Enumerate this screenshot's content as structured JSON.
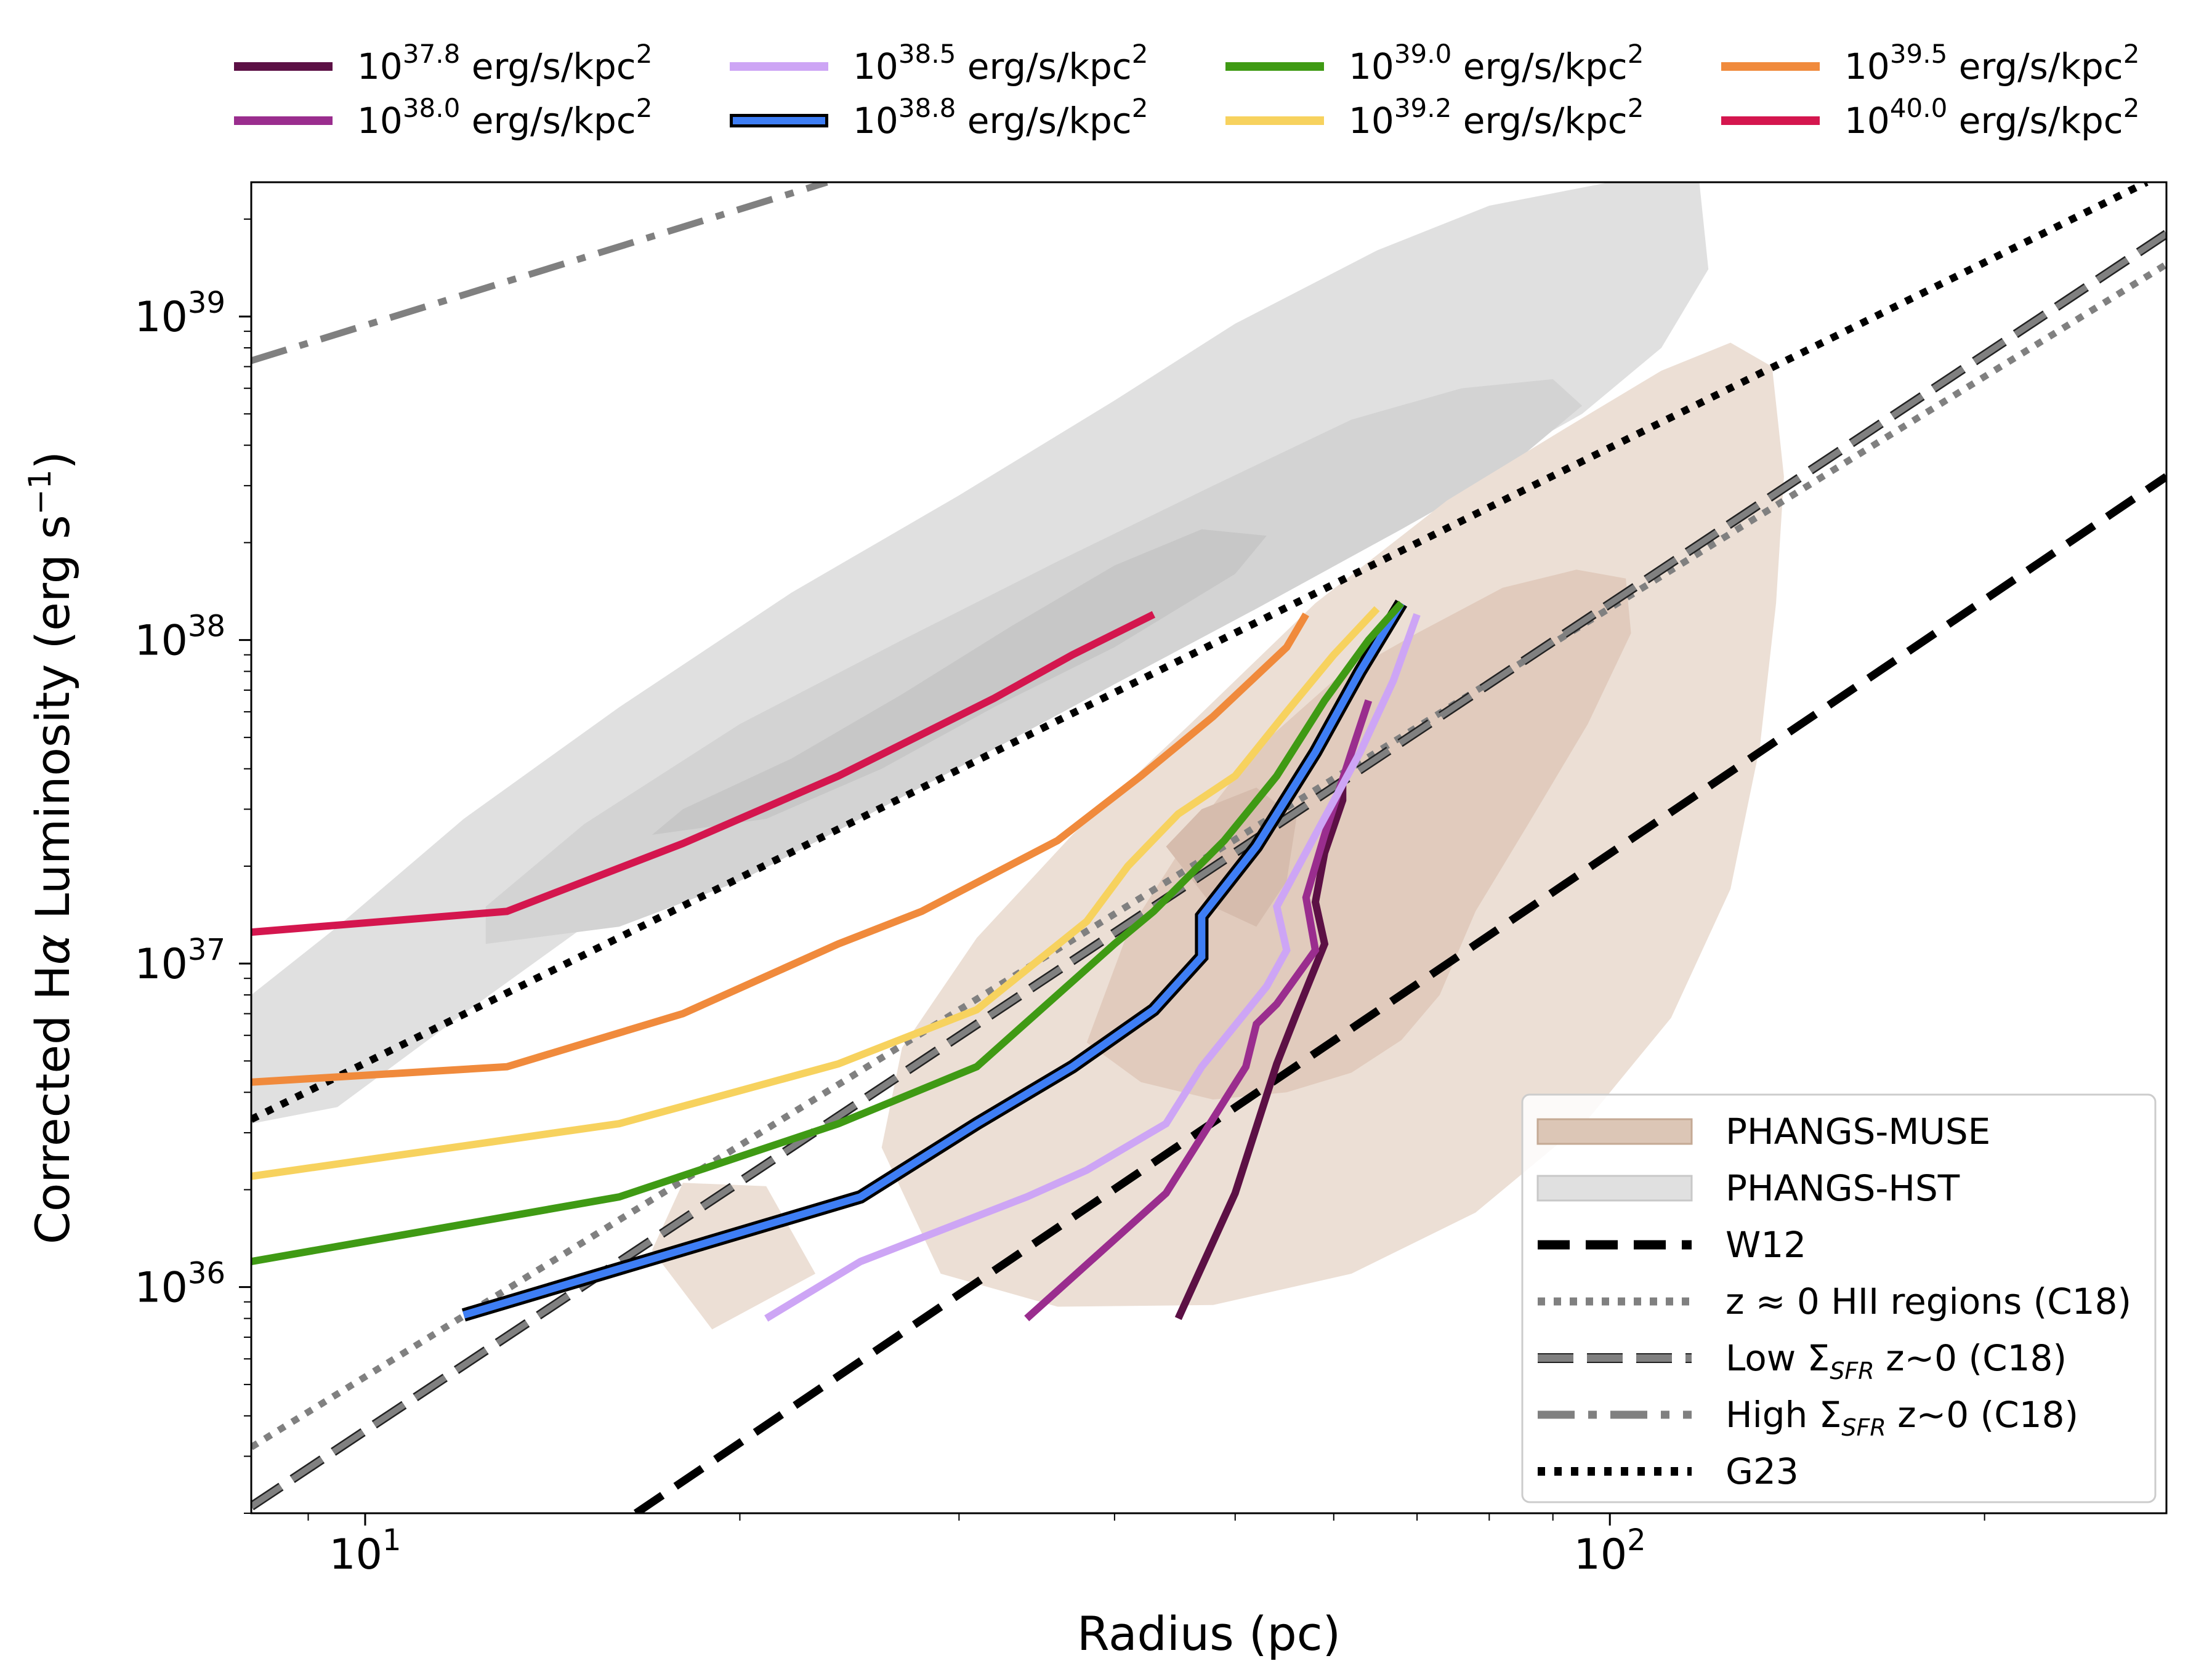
{
  "chart_data": {
    "type": "line",
    "xscale": "log",
    "yscale": "log",
    "xlim": [
      8.1,
      280
    ],
    "ylim": [
      2e+35,
      2.6e+39
    ],
    "xlabel": "Radius (pc)",
    "ylabel_prefix": "Corrected H",
    "ylabel_alpha": "α",
    "ylabel_mid": " Luminosity (erg s",
    "ylabel_exp": "−1",
    "ylabel_suffix": ")",
    "xticks": [
      {
        "base": "10",
        "exp": "1",
        "value": 10
      },
      {
        "base": "10",
        "exp": "2",
        "value": 100
      }
    ],
    "yticks": [
      {
        "base": "10",
        "exp": "36",
        "value": 1e+36
      },
      {
        "base": "10",
        "exp": "37",
        "value": 1e+37
      },
      {
        "base": "10",
        "exp": "38",
        "value": 1e+38
      },
      {
        "base": "10",
        "exp": "39",
        "value": 1e+39
      }
    ],
    "top_legend": [
      {
        "base": "10",
        "exp": "37.8",
        "unit": " erg/s/kpc",
        "unit_exp": "2",
        "color": "#5c1045"
      },
      {
        "base": "10",
        "exp": "38.0",
        "unit": " erg/s/kpc",
        "unit_exp": "2",
        "color": "#9a2d8e"
      },
      {
        "base": "10",
        "exp": "38.5",
        "unit": " erg/s/kpc",
        "unit_exp": "2",
        "color": "#cda5f5"
      },
      {
        "base": "10",
        "exp": "38.8",
        "unit": " erg/s/kpc",
        "unit_exp": "2",
        "color": "#3e7ef5",
        "outlined": true
      },
      {
        "base": "10",
        "exp": "39.0",
        "unit": " erg/s/kpc",
        "unit_exp": "2",
        "color": "#3f9a14"
      },
      {
        "base": "10",
        "exp": "39.2",
        "unit": " erg/s/kpc",
        "unit_exp": "2",
        "color": "#f7d25e"
      },
      {
        "base": "10",
        "exp": "39.5",
        "unit": " erg/s/kpc",
        "unit_exp": "2",
        "color": "#f08a3c"
      },
      {
        "base": "10",
        "exp": "40.0",
        "unit": " erg/s/kpc",
        "unit_exp": "2",
        "color": "#d4164e"
      }
    ],
    "inner_legend": [
      {
        "label": "PHANGS-MUSE",
        "kind": "patch",
        "color": "#dcc6b6"
      },
      {
        "label": "PHANGS-HST",
        "kind": "patch",
        "color": "#e0e0e0"
      },
      {
        "label": "W12",
        "kind": "line",
        "style": "dashed",
        "color": "#000000"
      },
      {
        "label": "z ≈ 0 HII regions (C18)",
        "kind": "line",
        "style": "dotted",
        "color": "#808080"
      },
      {
        "label_pre": "Low Σ",
        "label_sub": "SFR",
        "label_post": " z~0 (C18)",
        "kind": "line",
        "style": "longdash",
        "color": "#808080"
      },
      {
        "label_pre": "High Σ",
        "label_sub": "SFR",
        "label_post": " z~0 (C18)",
        "kind": "line",
        "style": "dashdot",
        "color": "#808080"
      },
      {
        "label": "G23",
        "kind": "line",
        "style": "dotted-black",
        "color": "#000000"
      }
    ],
    "series": [
      {
        "name": "10^37.8 erg/s/kpc^2",
        "color": "#5c1045",
        "x": [
          45,
          50,
          54,
          56,
          59,
          58,
          59,
          61,
          61
        ],
        "y": [
          8e+35,
          1.95e+36,
          4.9e+36,
          7e+36,
          1.15e+37,
          1.55e+37,
          2.2e+37,
          3.2e+37,
          3.7e+37
        ]
      },
      {
        "name": "10^38.0 erg/s/kpc^2",
        "color": "#9a2d8e",
        "x": [
          34,
          44,
          51,
          52,
          54,
          58,
          57,
          59,
          62,
          64
        ],
        "y": [
          8e+35,
          1.95e+36,
          4.8e+36,
          6.5e+36,
          7.5e+36,
          1.1e+37,
          1.6e+37,
          2.5e+37,
          4.5e+37,
          6.5e+37
        ]
      },
      {
        "name": "10^38.5 erg/s/kpc^2",
        "color": "#cda5f5",
        "x": [
          21,
          25,
          34,
          38,
          44,
          47,
          53,
          55,
          54,
          58,
          63,
          67,
          70
        ],
        "y": [
          8e+35,
          1.2e+36,
          1.9e+36,
          2.3e+36,
          3.2e+36,
          4.8e+36,
          8.5e+36,
          1.1e+37,
          1.5e+37,
          2.5e+37,
          4.5e+37,
          7.5e+37,
          1.2e+38
        ]
      },
      {
        "name": "10^38.8 erg/s/kpc^2",
        "color": "#3e7ef5",
        "outlined": true,
        "x": [
          12,
          25,
          31,
          37,
          43,
          47,
          47,
          52,
          58,
          63,
          68
        ],
        "y": [
          8.2e+35,
          1.9e+36,
          3.2e+36,
          4.8e+36,
          7.2e+36,
          1.05e+37,
          1.4e+37,
          2.3e+37,
          4.5e+37,
          8e+37,
          1.3e+38
        ]
      },
      {
        "name": "10^39.0 erg/s/kpc^2",
        "color": "#3f9a14",
        "x": [
          8.1,
          16,
          24,
          31,
          40,
          43,
          49,
          54,
          59,
          64,
          68
        ],
        "y": [
          1.2e+36,
          1.9e+36,
          3.2e+36,
          4.8e+36,
          1.15e+37,
          1.45e+37,
          2.4e+37,
          3.8e+37,
          6.5e+37,
          1e+38,
          1.3e+38
        ]
      },
      {
        "name": "10^39.2 erg/s/kpc^2",
        "color": "#f7d25e",
        "x": [
          8.1,
          16,
          24,
          31,
          38,
          41,
          45,
          50,
          55,
          60,
          65
        ],
        "y": [
          2.2e+36,
          3.2e+36,
          4.9e+36,
          7.2e+36,
          1.35e+37,
          2e+37,
          2.9e+37,
          3.8e+37,
          6e+37,
          9e+37,
          1.25e+38
        ]
      },
      {
        "name": "10^39.5 erg/s/kpc^2",
        "color": "#f08a3c",
        "x": [
          8.1,
          13,
          18,
          24,
          28,
          36,
          42,
          48,
          55,
          57
        ],
        "y": [
          4.3e+36,
          4.8e+36,
          7e+36,
          1.15e+37,
          1.45e+37,
          2.4e+37,
          3.8e+37,
          5.8e+37,
          9.5e+37,
          1.2e+38
        ]
      },
      {
        "name": "10^40.0 erg/s/kpc^2",
        "color": "#d4164e",
        "x": [
          8.1,
          13,
          18,
          24,
          32,
          37,
          43
        ],
        "y": [
          1.25e+37,
          1.45e+37,
          2.35e+37,
          3.8e+37,
          6.6e+37,
          9e+37,
          1.2e+38
        ]
      }
    ],
    "reference_lines": [
      {
        "name": "W12",
        "style": "dashed",
        "color": "#000000",
        "x": [
          16.5,
          280
        ],
        "y": [
          2e+35,
          3.2e+38
        ]
      },
      {
        "name": "z ≈ 0 HII regions (C18)",
        "style": "dotted",
        "color": "#808080",
        "x": [
          8.1,
          280
        ],
        "y": [
          3.2e+35,
          1.45e+39
        ]
      },
      {
        "name": "Low ΣSFR z~0 (C18)",
        "style": "longdash",
        "color": "#808080",
        "x": [
          8.1,
          280
        ],
        "y": [
          2.1e+35,
          1.8e+39
        ]
      },
      {
        "name": "High ΣSFR z~0 (C18)",
        "style": "dashdot",
        "color": "#808080",
        "x": [
          8.1,
          23.5
        ],
        "y": [
          7.3e+38,
          2.6e+39
        ]
      },
      {
        "name": "G23",
        "style": "dotted-black",
        "color": "#000000",
        "x": [
          8.1,
          270
        ],
        "y": [
          3.3e+36,
          2.6e+39
        ]
      }
    ],
    "contours": [
      {
        "group": "PHANGS-HST",
        "color": "#e0e0e0",
        "x": [
          8.1,
          9.5,
          12,
          15,
          19,
          24,
          30,
          40,
          55,
          75,
          95,
          110,
          120,
          118,
          100,
          80,
          65,
          50,
          40,
          30,
          22,
          16,
          12,
          9.5,
          8.1
        ],
        "y": [
          3.2e+36,
          3.6e+36,
          7e+36,
          1.3e+37,
          2.3e+37,
          3.6e+37,
          5.6e+37,
          1e+38,
          1.8e+38,
          3e+38,
          5e+38,
          8e+38,
          1.4e+39,
          2.6e+39,
          2.6e+39,
          2.2e+39,
          1.6e+39,
          9.5e+38,
          5.5e+38,
          2.8e+38,
          1.4e+38,
          6.2e+37,
          2.8e+37,
          1.3e+37,
          8e+36
        ]
      },
      {
        "group": "PHANGS-HST",
        "color": "#d3d3d3",
        "x": [
          12.5,
          16,
          20,
          25,
          32,
          40,
          52,
          68,
          82,
          95,
          90,
          76,
          62,
          48,
          36,
          27,
          20,
          15,
          12.5
        ],
        "y": [
          1.15e+37,
          1.3e+37,
          1.8e+37,
          2.8e+37,
          4.6e+37,
          7.3e+37,
          1.25e+38,
          2.2e+38,
          3.3e+38,
          5.3e+38,
          6.4e+38,
          6e+38,
          4.8e+38,
          3e+38,
          1.75e+38,
          1e+38,
          5.5e+37,
          2.7e+37,
          1.5e+37
        ]
      },
      {
        "group": "PHANGS-HST",
        "color": "#c7c7c7",
        "x": [
          17,
          21,
          26,
          32,
          40,
          50,
          53,
          47,
          40,
          33,
          27,
          22,
          18,
          17
        ],
        "y": [
          2.5e+37,
          2.8e+37,
          4e+37,
          6.2e+37,
          9.5e+37,
          1.6e+38,
          2.1e+38,
          2.2e+38,
          1.7e+38,
          1.1e+38,
          6.8e+37,
          4.3e+37,
          3e+37,
          2.5e+37
        ]
      },
      {
        "group": "PHANGS-MUSE",
        "color": "#ecdfd5",
        "x": [
          17,
          19,
          23,
          21,
          18,
          17
        ],
        "y": [
          1.3e+36,
          7.4e+35,
          1.1e+36,
          2.05e+36,
          2.1e+36,
          1.3e+36
        ]
      },
      {
        "group": "PHANGS-MUSE",
        "color": "#ecdfd5",
        "x": [
          26,
          29,
          36,
          48,
          62,
          78,
          96,
          112,
          125,
          132,
          136,
          138,
          135,
          125,
          110,
          92,
          74,
          58,
          46,
          37,
          31,
          27,
          26
        ],
        "y": [
          2.7e+36,
          1.1e+36,
          8.7e+35,
          8.8e+35,
          1.1e+36,
          1.7e+36,
          3.3e+36,
          6.8e+36,
          1.7e+37,
          4.7e+37,
          1.3e+38,
          3.2e+38,
          7e+38,
          8.3e+38,
          6.8e+38,
          4.5e+38,
          2.7e+38,
          1.3e+38,
          5.5e+37,
          2.5e+37,
          1.2e+37,
          5.5e+36,
          2.7e+36
        ]
      },
      {
        "group": "PHANGS-MUSE",
        "color": "#e1cbbd",
        "x": [
          38,
          42,
          48,
          55,
          62,
          68,
          73,
          78,
          86,
          96,
          104,
          103,
          94,
          82,
          70,
          60,
          52,
          46,
          41,
          38
        ],
        "y": [
          5.7e+36,
          4.3e+36,
          3.8e+36,
          4e+36,
          4.6e+36,
          5.8e+36,
          8e+36,
          1.45e+37,
          2.7e+37,
          5.5e+37,
          1.05e+38,
          1.55e+38,
          1.65e+38,
          1.45e+38,
          1.05e+38,
          7.5e+37,
          4.6e+37,
          2.5e+37,
          1.25e+37,
          5.7e+36
        ]
      },
      {
        "group": "PHANGS-MUSE",
        "color": "#d6bcad",
        "x": [
          44,
          48,
          52,
          55,
          56,
          52,
          47,
          44
        ],
        "y": [
          2.3e+37,
          1.5e+37,
          1.3e+37,
          1.8e+37,
          2.8e+37,
          3.5e+37,
          3e+37,
          2.3e+37
        ]
      }
    ]
  }
}
